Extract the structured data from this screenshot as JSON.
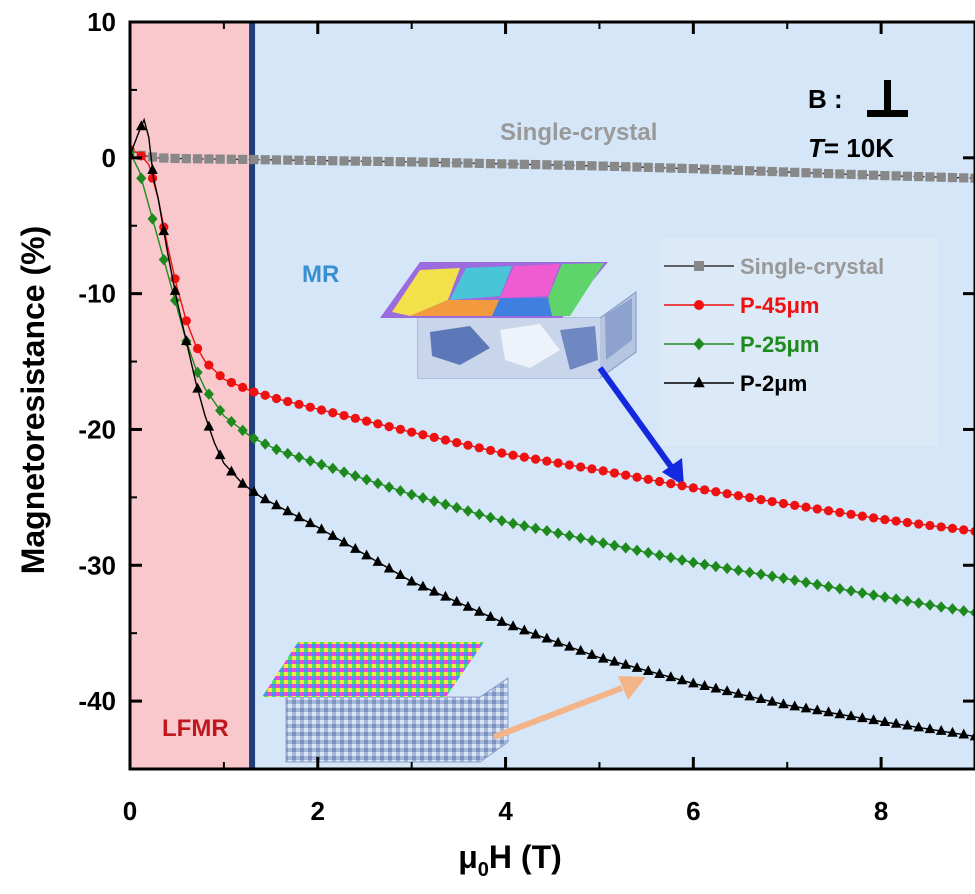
{
  "chart_data": {
    "type": "scatter",
    "xlabel_main": "μ",
    "xlabel_sub": "0",
    "xlabel_rest": "H (T)",
    "ylabel": "Magnetoresistance (%)",
    "xlim": [
      0,
      9
    ],
    "ylim": [
      -45,
      10
    ],
    "x_ticks": [
      0,
      2,
      4,
      6,
      8
    ],
    "y_ticks": [
      10,
      0,
      -10,
      -20,
      -30,
      -40
    ],
    "regions": [
      {
        "name": "LFMR",
        "x": [
          0,
          1.3
        ],
        "color": "#f8c8cc",
        "label_color": "#c0161e"
      },
      {
        "name": "MR",
        "x": [
          1.3,
          9
        ],
        "color": "#d4e6f7",
        "label_color": "#3a8fd0"
      }
    ],
    "region_divider_x": 1.3,
    "annotations": {
      "field_label": "B :",
      "temperature_label": "T",
      "temperature_value": "= 10K",
      "single_crystal_label": "Single-crystal"
    },
    "series": [
      {
        "name": "Single-crystal",
        "color": "#888888",
        "marker": "square",
        "points": [
          [
            0,
            0.3
          ],
          [
            0.1,
            0.2
          ],
          [
            0.2,
            0.1
          ],
          [
            0.3,
            0
          ],
          [
            0.5,
            -0.05
          ],
          [
            1,
            -0.1
          ],
          [
            2,
            -0.2
          ],
          [
            3,
            -0.3
          ],
          [
            4,
            -0.45
          ],
          [
            5,
            -0.6
          ],
          [
            6,
            -0.8
          ],
          [
            7,
            -1.05
          ],
          [
            8,
            -1.3
          ],
          [
            9,
            -1.5
          ]
        ]
      },
      {
        "name": "P-45μm",
        "color": "#ee1111",
        "marker": "circle",
        "points": [
          [
            0,
            0.6
          ],
          [
            0.1,
            0.3
          ],
          [
            0.2,
            -0.5
          ],
          [
            0.3,
            -3
          ],
          [
            0.4,
            -6.5
          ],
          [
            0.5,
            -9.5
          ],
          [
            0.6,
            -12
          ],
          [
            0.7,
            -13.8
          ],
          [
            0.8,
            -15
          ],
          [
            1,
            -16.3
          ],
          [
            1.3,
            -17.2
          ],
          [
            1.6,
            -17.8
          ],
          [
            2,
            -18.5
          ],
          [
            3,
            -20.2
          ],
          [
            4,
            -21.8
          ],
          [
            5,
            -23
          ],
          [
            6,
            -24.3
          ],
          [
            7,
            -25.5
          ],
          [
            8,
            -26.6
          ],
          [
            9,
            -27.5
          ]
        ]
      },
      {
        "name": "P-25μm",
        "color": "#1e8a1e",
        "marker": "diamond",
        "points": [
          [
            0,
            0.4
          ],
          [
            0.1,
            -1
          ],
          [
            0.2,
            -3.5
          ],
          [
            0.3,
            -6
          ],
          [
            0.4,
            -8.5
          ],
          [
            0.5,
            -11
          ],
          [
            0.6,
            -13.5
          ],
          [
            0.7,
            -15.5
          ],
          [
            0.8,
            -17
          ],
          [
            1,
            -19
          ],
          [
            1.3,
            -20.6
          ],
          [
            1.6,
            -21.6
          ],
          [
            2,
            -22.5
          ],
          [
            3,
            -24.8
          ],
          [
            4,
            -26.8
          ],
          [
            5,
            -28.3
          ],
          [
            6,
            -29.8
          ],
          [
            7,
            -31
          ],
          [
            8,
            -32.3
          ],
          [
            9,
            -33.5
          ]
        ]
      },
      {
        "name": "P-2μm",
        "color": "#000000",
        "marker": "triangle",
        "points": [
          [
            0,
            0.2
          ],
          [
            0.1,
            2
          ],
          [
            0.15,
            2.8
          ],
          [
            0.2,
            1.5
          ],
          [
            0.25,
            -1.5
          ],
          [
            0.3,
            -3
          ],
          [
            0.4,
            -7
          ],
          [
            0.5,
            -10.5
          ],
          [
            0.6,
            -13.5
          ],
          [
            0.7,
            -16.5
          ],
          [
            0.8,
            -19
          ],
          [
            0.9,
            -21
          ],
          [
            1,
            -22.5
          ],
          [
            1.2,
            -24
          ],
          [
            1.4,
            -25
          ],
          [
            2,
            -27.2
          ],
          [
            3,
            -31.2
          ],
          [
            4,
            -34.3
          ],
          [
            5,
            -36.8
          ],
          [
            6,
            -38.7
          ],
          [
            7,
            -40.3
          ],
          [
            8,
            -41.5
          ],
          [
            9,
            -42.6
          ]
        ]
      }
    ]
  }
}
